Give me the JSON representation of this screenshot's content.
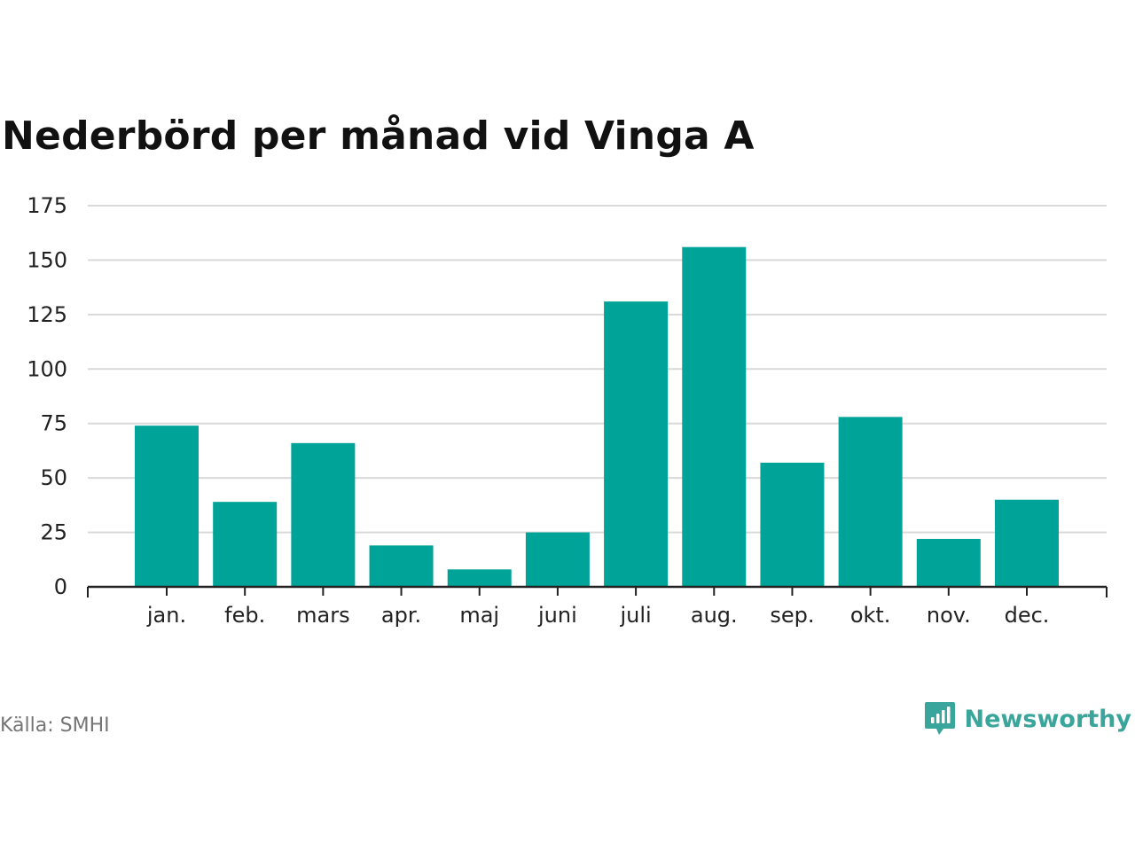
{
  "title": "Nederbörd per månad vid Vinga A",
  "source": "Källa: SMHI",
  "brand": {
    "name": "Newsworthy",
    "icon": "newsworthy-logo-icon",
    "color": "#3aa59a"
  },
  "colors": {
    "bar": "#00a398",
    "grid": "#d9d9d9",
    "axis": "#222222"
  },
  "chart_data": {
    "type": "bar",
    "categories": [
      "jan.",
      "feb.",
      "mars",
      "apr.",
      "maj",
      "juni",
      "juli",
      "aug.",
      "sep.",
      "okt.",
      "nov.",
      "dec."
    ],
    "values": [
      74,
      39,
      66,
      19,
      8,
      25,
      131,
      156,
      57,
      78,
      22,
      40
    ],
    "y_ticks": [
      0,
      25,
      50,
      75,
      100,
      125,
      150,
      175
    ],
    "ylim": [
      0,
      175
    ],
    "grid": true,
    "legend": "none"
  }
}
